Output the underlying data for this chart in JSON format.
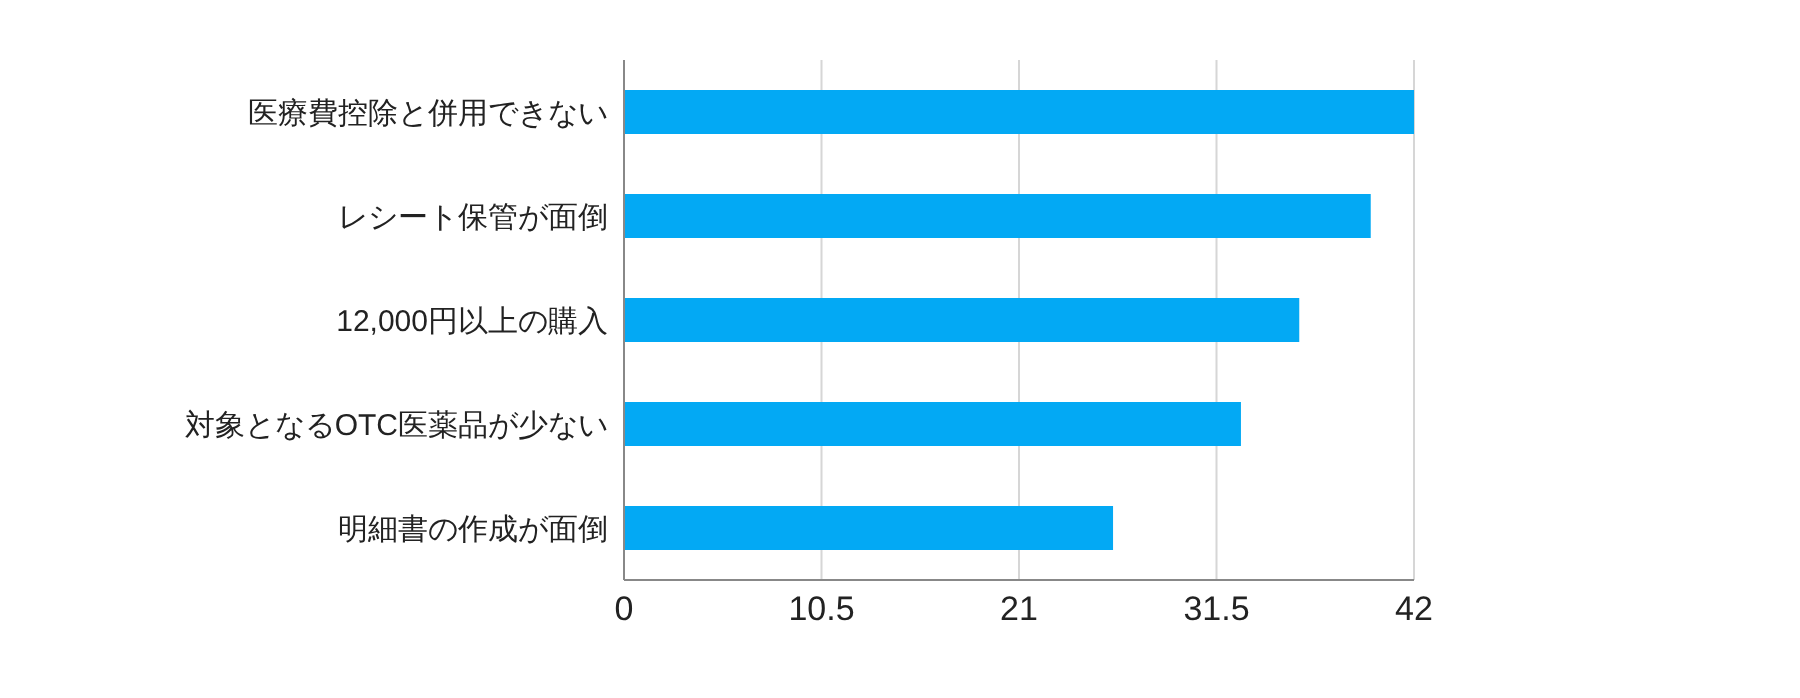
{
  "chart_data": {
    "type": "bar",
    "orientation": "horizontal",
    "categories": [
      "医療費控除と併用できない",
      "レシート保管が面倒",
      "12,000円以上の購入",
      "対象となるOTC医薬品が少ない",
      "明細書の作成が面倒"
    ],
    "values": [
      42,
      39.7,
      35.9,
      32.8,
      26.0
    ],
    "color": "#03a9f4",
    "xlim": [
      0,
      42
    ],
    "xticks": [
      0,
      10.5,
      21,
      31.5,
      42
    ],
    "grid": "x",
    "legend": false
  }
}
